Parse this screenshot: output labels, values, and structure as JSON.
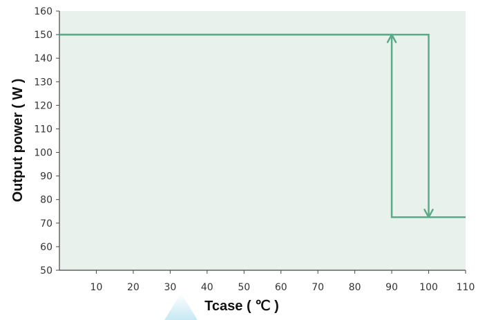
{
  "chart_data": {
    "type": "line",
    "xlabel": "Tcase ( ℃ )",
    "ylabel": "Output power ( W )",
    "xlim": [
      0,
      110
    ],
    "ylim": [
      50,
      160
    ],
    "x_ticks": [
      10,
      20,
      30,
      40,
      50,
      60,
      70,
      80,
      90,
      100,
      110
    ],
    "y_ticks": [
      50,
      60,
      70,
      80,
      90,
      100,
      110,
      120,
      130,
      140,
      150,
      160
    ],
    "grid": false,
    "series": [
      {
        "x": [
          0,
          100,
          100,
          110
        ],
        "y": [
          150,
          150,
          72.5,
          72.5
        ]
      },
      {
        "x": [
          0,
          90,
          90,
          110
        ],
        "y": [
          150,
          150,
          72.5,
          72.5
        ]
      }
    ],
    "arrows": [
      {
        "x": 90,
        "from": 72.5,
        "to": 150,
        "direction": "up"
      },
      {
        "x": 100,
        "from": 150,
        "to": 72.5,
        "direction": "down"
      }
    ]
  },
  "colors": {
    "plot_background": "#e8f1ec",
    "line": "#5aaa8a",
    "axis": "#444444",
    "watermark": "#bfe6f2"
  }
}
